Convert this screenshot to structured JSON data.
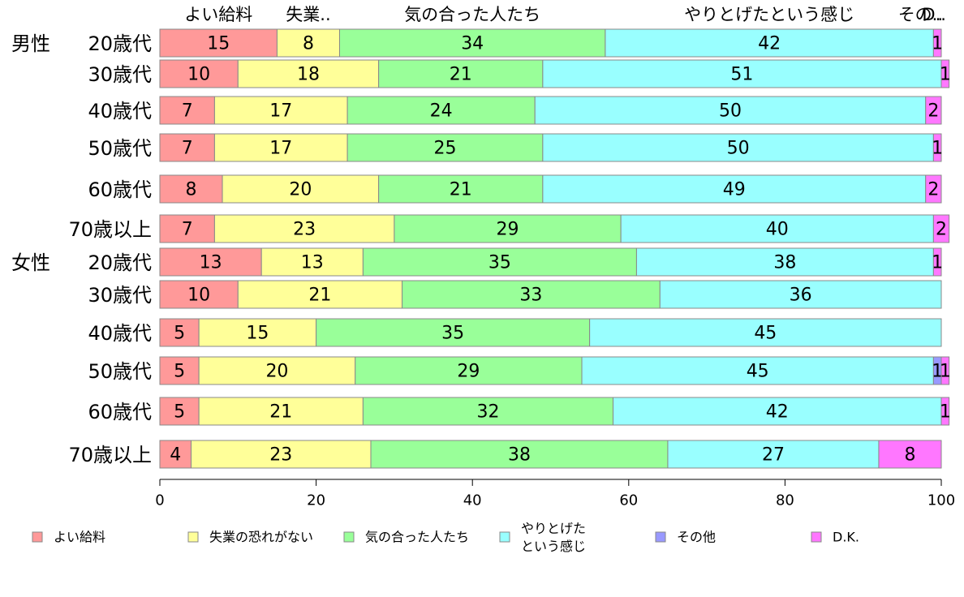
{
  "chart_data": {
    "type": "bar",
    "orientation": "horizontal",
    "stacked": true,
    "xlim": [
      0,
      100
    ],
    "xticks": [
      "0",
      "20",
      "40",
      "60",
      "80",
      "100"
    ],
    "column_header_labels": [
      "よい給料",
      "失業..",
      "気の合った人たち",
      "やりとげたという感じ",
      "その..",
      "D.."
    ],
    "groups": [
      {
        "name": "男性",
        "rows": [
          "20歳代",
          "30歳代",
          "40歳代",
          "50歳代",
          "60歳代",
          "70歳以上"
        ]
      },
      {
        "name": "女性",
        "rows": [
          "20歳代",
          "30歳代",
          "40歳代",
          "50歳代",
          "60歳代",
          "70歳以上"
        ]
      }
    ],
    "categories": [
      "20歳代",
      "30歳代",
      "40歳代",
      "50歳代",
      "60歳代",
      "70歳以上",
      "20歳代",
      "30歳代",
      "40歳代",
      "50歳代",
      "60歳代",
      "70歳以上"
    ],
    "series": [
      {
        "name": "よい給料",
        "color": "#ff9999",
        "values": [
          15,
          10,
          7,
          7,
          8,
          7,
          13,
          10,
          5,
          5,
          5,
          4
        ]
      },
      {
        "name": "失業の恐れがない",
        "color": "#ffff99",
        "values": [
          8,
          18,
          17,
          17,
          20,
          23,
          13,
          21,
          15,
          20,
          21,
          23
        ]
      },
      {
        "name": "気の合った人たち",
        "color": "#99ff99",
        "values": [
          34,
          21,
          24,
          25,
          21,
          29,
          35,
          33,
          35,
          29,
          32,
          38
        ]
      },
      {
        "name": "やりとげたという感じ",
        "color": "#99ffff",
        "values": [
          42,
          51,
          50,
          50,
          49,
          40,
          38,
          36,
          45,
          45,
          42,
          27
        ]
      },
      {
        "name": "その他",
        "color": "#9999ff",
        "values": [
          0,
          0,
          0,
          0,
          0,
          0,
          0,
          0,
          0,
          1,
          0,
          0
        ]
      },
      {
        "name": "D.K.",
        "color": "#ff77ff",
        "values": [
          1,
          1,
          2,
          1,
          2,
          2,
          1,
          0,
          0,
          1,
          1,
          8
        ]
      }
    ],
    "legend": {
      "placement": "bottom",
      "items": [
        {
          "label": "よい給料",
          "color": "#ff9999"
        },
        {
          "label": "失業の恐れがない",
          "color": "#ffff99"
        },
        {
          "label": "気の合った人たち",
          "color": "#99ff99"
        },
        {
          "label": "やりとげた\nという感じ",
          "color": "#99ffff"
        },
        {
          "label": "その他",
          "color": "#9999ff"
        },
        {
          "label": "D.K.",
          "color": "#ff77ff"
        }
      ]
    }
  }
}
